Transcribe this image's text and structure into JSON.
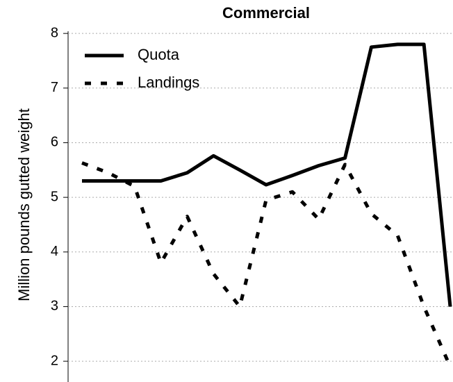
{
  "chart_data": {
    "type": "line",
    "title": "Commercial",
    "y_label": "Million pounds gutted weight",
    "categories": [
      null,
      null,
      null,
      null,
      null,
      null,
      null,
      null,
      null,
      null,
      null,
      null,
      null,
      null,
      null
    ],
    "series": [
      {
        "name": "Quota",
        "color": "#000000",
        "style": "solid",
        "values": [
          5.3,
          5.3,
          5.3,
          5.3,
          5.45,
          5.76,
          5.5,
          5.23,
          5.4,
          5.58,
          5.72,
          7.75,
          7.8,
          7.8,
          3.0
        ]
      },
      {
        "name": "Landings",
        "color": "#000000",
        "style": "dashed",
        "values": [
          5.63,
          5.45,
          5.2,
          3.8,
          4.65,
          3.6,
          3.0,
          4.95,
          5.1,
          4.6,
          5.6,
          4.7,
          4.3,
          3.0,
          1.9
        ]
      }
    ],
    "ylim": [
      1.62,
      8.04
    ],
    "yticks": [
      2,
      3,
      4,
      5,
      6,
      7,
      8
    ],
    "grid": true,
    "legend": "top-left"
  }
}
